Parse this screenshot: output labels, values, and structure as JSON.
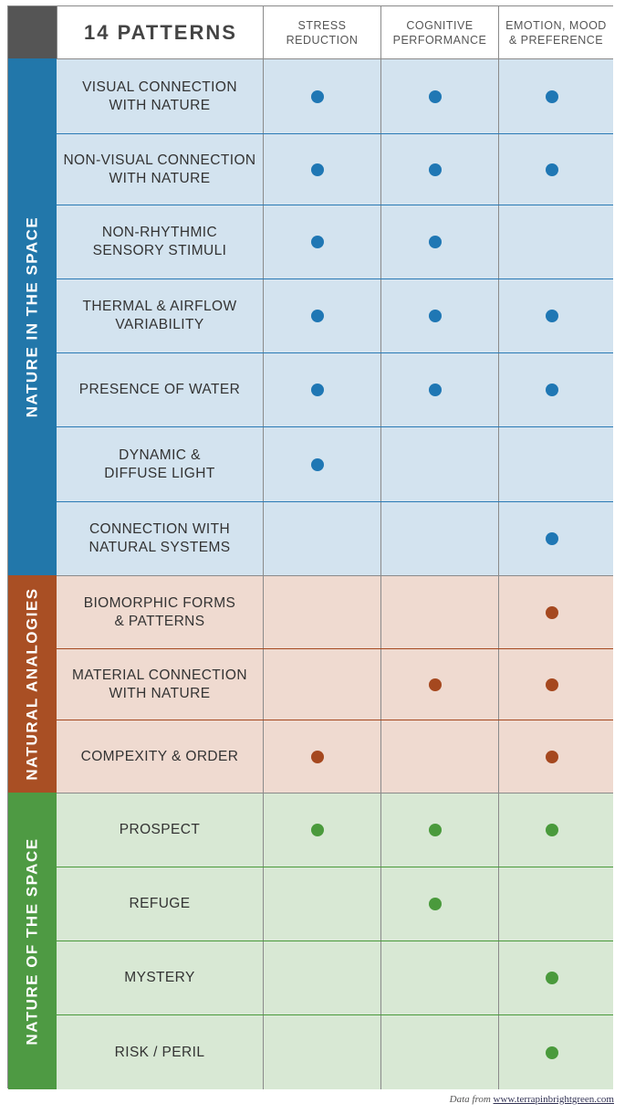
{
  "header": {
    "title": "14 PATTERNS",
    "columns": [
      "STRESS\nREDUCTION",
      "COGNITIVE\nPERFORMANCE",
      "EMOTION, MOOD\n& PREFERENCE"
    ]
  },
  "colors": {
    "nature_in_space": {
      "label_bg": "#2277aa",
      "row_bg": "#d3e3ef",
      "dot": "#1f77b4",
      "separator": "#2a7ab5"
    },
    "natural_analogies": {
      "label_bg": "#a94f24",
      "row_bg": "#efdad0",
      "dot": "#a5481f",
      "separator": "#a5481f"
    },
    "nature_of_space": {
      "label_bg": "#4e9a43",
      "row_bg": "#d8e8d4",
      "dot": "#4a9a3c",
      "separator": "#4a9a3c"
    }
  },
  "groups": [
    {
      "key": "nature_in_space",
      "label": "NATURE IN THE SPACE",
      "patterns": [
        {
          "name": "VISUAL CONNECTION\nWITH NATURE",
          "stress": true,
          "cognitive": true,
          "emotion": true
        },
        {
          "name": "NON-VISUAL CONNECTION\nWITH NATURE",
          "stress": true,
          "cognitive": true,
          "emotion": true
        },
        {
          "name": "NON-RHYTHMIC\nSENSORY STIMULI",
          "stress": true,
          "cognitive": true,
          "emotion": false
        },
        {
          "name": "THERMAL & AIRFLOW\nVARIABILITY",
          "stress": true,
          "cognitive": true,
          "emotion": true
        },
        {
          "name": "PRESENCE OF WATER",
          "stress": true,
          "cognitive": true,
          "emotion": true
        },
        {
          "name": "DYNAMIC &\nDIFFUSE LIGHT",
          "stress": true,
          "cognitive": false,
          "emotion": false
        },
        {
          "name": "CONNECTION WITH\nNATURAL SYSTEMS",
          "stress": false,
          "cognitive": false,
          "emotion": true
        }
      ]
    },
    {
      "key": "natural_analogies",
      "label": "NATURAL ANALOGIES",
      "patterns": [
        {
          "name": "BIOMORPHIC FORMS\n& PATTERNS",
          "stress": false,
          "cognitive": false,
          "emotion": true
        },
        {
          "name": "MATERIAL CONNECTION\nWITH NATURE",
          "stress": false,
          "cognitive": true,
          "emotion": true
        },
        {
          "name": "COMPEXITY & ORDER",
          "stress": true,
          "cognitive": false,
          "emotion": true
        }
      ]
    },
    {
      "key": "nature_of_space",
      "label": "NATURE OF THE SPACE",
      "patterns": [
        {
          "name": "PROSPECT",
          "stress": true,
          "cognitive": true,
          "emotion": true
        },
        {
          "name": "REFUGE",
          "stress": false,
          "cognitive": true,
          "emotion": false
        },
        {
          "name": "MYSTERY",
          "stress": false,
          "cognitive": false,
          "emotion": true
        },
        {
          "name": "RISK / PERIL",
          "stress": false,
          "cognitive": false,
          "emotion": true
        }
      ]
    }
  ],
  "credit": {
    "prefix": "Data from ",
    "link": "www.terrapinbrightgreen.com"
  }
}
